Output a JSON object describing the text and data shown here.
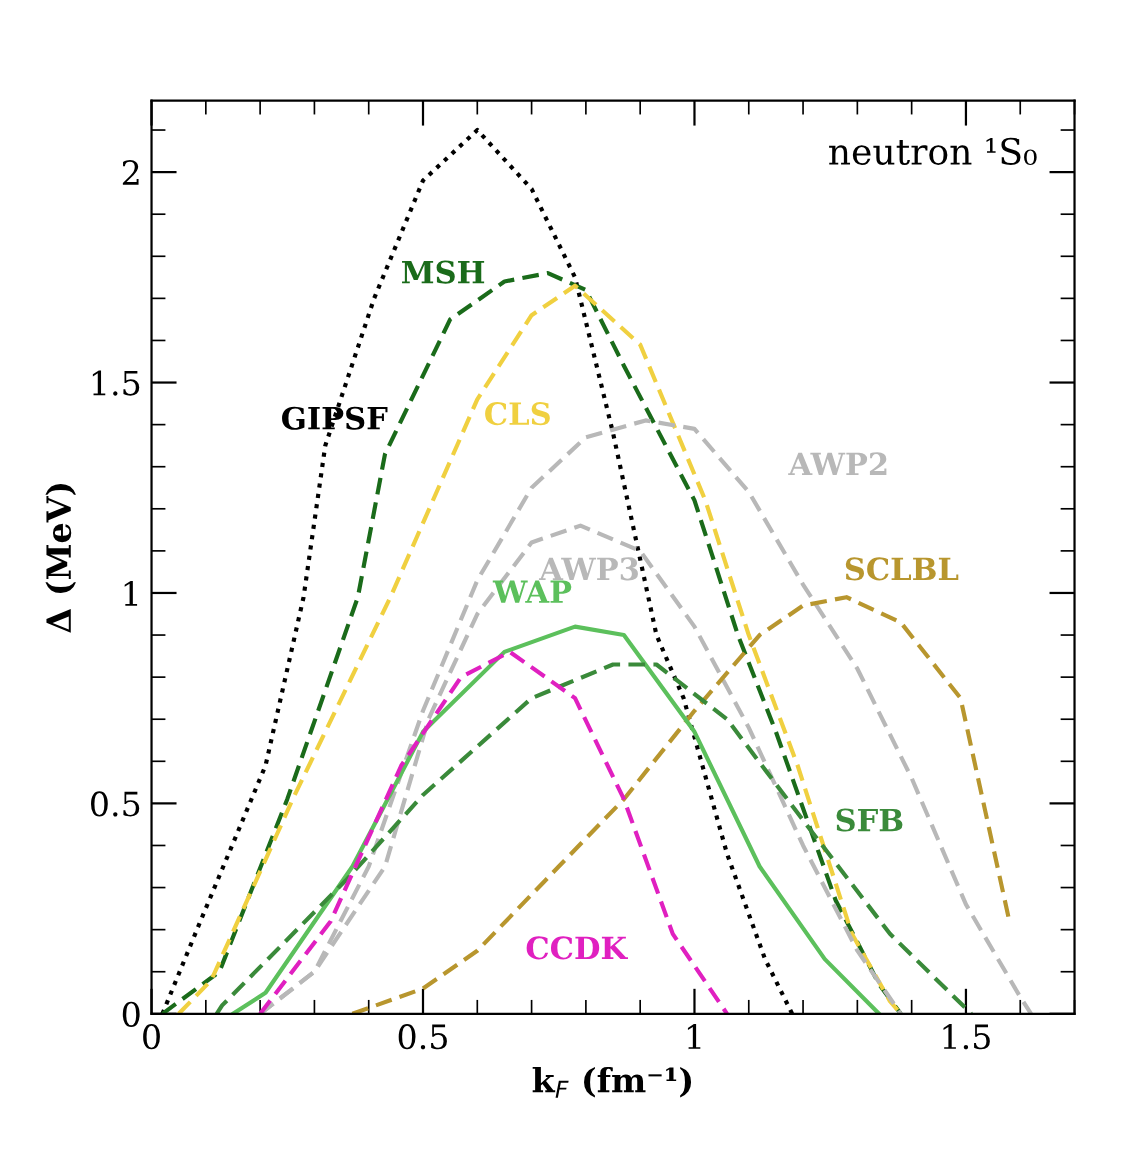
{
  "chart_data": {
    "type": "line",
    "xlabel": "k$_{F}$ (fm⁻¹)",
    "ylabel": "Δ (MeV)",
    "annotations": [
      "neutron ¹S₀"
    ],
    "xlim": [
      0,
      1.7
    ],
    "ylim": [
      0,
      2.17
    ],
    "xticks": [
      0,
      0.5,
      1,
      1.5
    ],
    "yticks": [
      0,
      0.5,
      1,
      1.5,
      2
    ],
    "grid": false,
    "legend": false,
    "series": [
      {
        "name": "GIPSF",
        "color": "#000000",
        "line_style": "dotted",
        "x": [
          0.02,
          0.09,
          0.21,
          0.28,
          0.32,
          0.41,
          0.5,
          0.6,
          0.7,
          0.78,
          0.85,
          0.93,
          0.98,
          1.06,
          1.13,
          1.18
        ],
        "values": [
          0,
          0.22,
          0.59,
          0.99,
          1.35,
          1.7,
          1.98,
          2.1,
          1.96,
          1.75,
          1.38,
          0.9,
          0.75,
          0.38,
          0.13,
          0
        ]
      },
      {
        "name": "MSH",
        "color": "#1a6b1a",
        "line_style": "dashed",
        "x": [
          0.02,
          0.125,
          0.25,
          0.38,
          0.43,
          0.55,
          0.65,
          0.73,
          0.8,
          0.87,
          1.0,
          1.08,
          1.15,
          1.26,
          1.34,
          1.38
        ],
        "values": [
          0,
          0.1,
          0.51,
          0.99,
          1.33,
          1.65,
          1.74,
          1.76,
          1.72,
          1.54,
          1.22,
          0.9,
          0.67,
          0.27,
          0.07,
          0
        ]
      },
      {
        "name": "CLS",
        "color": "#f0d040",
        "line_style": "dashed",
        "x": [
          0.05,
          0.11,
          0.26,
          0.44,
          0.6,
          0.7,
          0.78,
          0.9,
          1.02,
          1.1,
          1.19,
          1.29,
          1.36,
          1.38
        ],
        "values": [
          0,
          0.08,
          0.51,
          0.99,
          1.46,
          1.66,
          1.73,
          1.59,
          1.22,
          0.9,
          0.59,
          0.19,
          0.03,
          0
        ]
      },
      {
        "name": "AWP3",
        "color": "#b8b8b8",
        "line_style": "dashed",
        "x": [
          0.2,
          0.3,
          0.43,
          0.51,
          0.6,
          0.7,
          0.79,
          0.9,
          1.0,
          1.1,
          1.2,
          1.3,
          1.38
        ],
        "values": [
          0,
          0.1,
          0.35,
          0.7,
          0.95,
          1.12,
          1.16,
          1.1,
          0.92,
          0.68,
          0.4,
          0.15,
          0
        ]
      },
      {
        "name": "AWP2",
        "color": "#b8b8b8",
        "line_style": "dashed",
        "x": [
          0.2,
          0.3,
          0.4,
          0.5,
          0.6,
          0.7,
          0.8,
          0.91,
          1.0,
          1.1,
          1.2,
          1.3,
          1.4,
          1.5,
          1.6,
          1.62
        ],
        "values": [
          0,
          0.1,
          0.35,
          0.72,
          1.03,
          1.25,
          1.37,
          1.41,
          1.39,
          1.24,
          1.02,
          0.82,
          0.56,
          0.26,
          0.04,
          0
        ]
      },
      {
        "name": "SCLBL",
        "color": "#b8962e",
        "line_style": "dashed",
        "x": [
          0.37,
          0.5,
          0.6,
          0.75,
          0.87,
          1.0,
          1.12,
          1.2,
          1.28,
          1.38,
          1.49,
          1.58
        ],
        "values": [
          0,
          0.06,
          0.15,
          0.35,
          0.51,
          0.72,
          0.9,
          0.97,
          0.99,
          0.93,
          0.75,
          0.22
        ]
      },
      {
        "name": "WAP",
        "color": "#5cc05c",
        "line_style": "solid",
        "x": [
          0.15,
          0.21,
          0.37,
          0.5,
          0.65,
          0.78,
          0.87,
          1.0,
          1.12,
          1.24,
          1.34
        ],
        "values": [
          0,
          0.05,
          0.35,
          0.67,
          0.86,
          0.92,
          0.9,
          0.67,
          0.35,
          0.13,
          0
        ]
      },
      {
        "name": "SFB",
        "color": "#3a8a3a",
        "line_style": "dashed",
        "x": [
          0.12,
          0.13,
          0.36,
          0.5,
          0.7,
          0.85,
          0.93,
          1.06,
          1.2,
          1.36,
          1.51
        ],
        "values": [
          0,
          0.02,
          0.32,
          0.52,
          0.75,
          0.83,
          0.83,
          0.7,
          0.46,
          0.19,
          0
        ]
      },
      {
        "name": "CCDK",
        "color": "#e020c0",
        "line_style": "dashed",
        "x": [
          0.2,
          0.33,
          0.46,
          0.57,
          0.66,
          0.78,
          0.87,
          0.96,
          1.06
        ],
        "values": [
          0,
          0.22,
          0.59,
          0.8,
          0.86,
          0.75,
          0.51,
          0.19,
          0
        ]
      }
    ]
  }
}
